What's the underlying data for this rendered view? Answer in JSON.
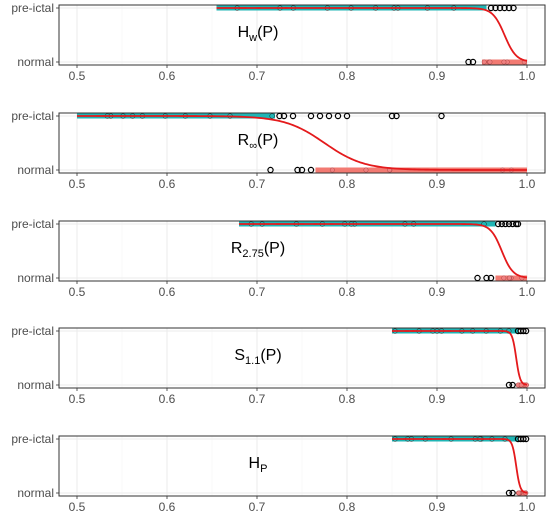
{
  "chart_data": [
    {
      "type": "scatter",
      "title_main": "H",
      "title_sub": "w",
      "title_suffix": "(P)",
      "xlim": [
        0.48,
        1.02
      ],
      "xticks": [
        "0.5",
        "0.6",
        "0.7",
        "0.8",
        "0.9",
        "1.0"
      ],
      "ycategories": [
        "normal",
        "pre-ictal"
      ],
      "preictal_range": [
        0.655,
        0.955
      ],
      "normal_range": [
        0.95,
        1.0
      ],
      "preictal_outliers": [
        0.96,
        0.965,
        0.97,
        0.975,
        0.98,
        0.985
      ],
      "normal_outliers": [
        0.935,
        0.94
      ],
      "curve_mid": 0.975,
      "curve_scale": 0.0065
    },
    {
      "type": "scatter",
      "title_main": "R",
      "title_sub": "∞",
      "title_suffix": "(P)",
      "xlim": [
        0.48,
        1.02
      ],
      "xticks": [
        "0.5",
        "0.6",
        "0.7",
        "0.8",
        "0.9",
        "1.0"
      ],
      "ycategories": [
        "normal",
        "pre-ictal"
      ],
      "preictal_range": [
        0.5,
        0.72
      ],
      "normal_range": [
        0.765,
        1.0
      ],
      "preictal_outliers": [
        0.725,
        0.73,
        0.74,
        0.76,
        0.77,
        0.78,
        0.79,
        0.8,
        0.85,
        0.855,
        0.905
      ],
      "normal_outliers": [
        0.715,
        0.745,
        0.75,
        0.76
      ],
      "curve_mid": 0.775,
      "curve_scale": 0.022
    },
    {
      "type": "scatter",
      "title_main": "R",
      "title_sub": "2.75",
      "title_suffix": "(P)",
      "xlim": [
        0.48,
        1.02
      ],
      "xticks": [
        "0.5",
        "0.6",
        "0.7",
        "0.8",
        "0.9",
        "1.0"
      ],
      "ycategories": [
        "normal",
        "pre-ictal"
      ],
      "preictal_range": [
        0.68,
        0.965
      ],
      "normal_range": [
        0.965,
        1.0
      ],
      "preictal_outliers": [
        0.968,
        0.972,
        0.976,
        0.98,
        0.984,
        0.988,
        0.99
      ],
      "normal_outliers": [
        0.945,
        0.955,
        0.96
      ],
      "curve_mid": 0.972,
      "curve_scale": 0.0062
    },
    {
      "type": "scatter",
      "title_main": "S",
      "title_sub": "1.1",
      "title_suffix": "(P)",
      "xlim": [
        0.48,
        1.02
      ],
      "xticks": [
        "0.5",
        "0.6",
        "0.7",
        "0.8",
        "0.9",
        "1.0"
      ],
      "ycategories": [
        "normal",
        "pre-ictal"
      ],
      "preictal_range": [
        0.85,
        0.99
      ],
      "normal_range": [
        0.99,
        1.0
      ],
      "preictal_outliers": [
        0.99,
        0.993,
        0.996,
        0.999
      ],
      "normal_outliers": [
        0.98,
        0.984
      ],
      "curve_mid": 0.988,
      "curve_scale": 0.0022
    },
    {
      "type": "scatter",
      "title_main": "H",
      "title_sub": "P",
      "title_suffix": "",
      "xlim": [
        0.48,
        1.02
      ],
      "xticks": [
        "0.5",
        "0.6",
        "0.7",
        "0.8",
        "0.9",
        "1.0"
      ],
      "ycategories": [
        "normal",
        "pre-ictal"
      ],
      "preictal_range": [
        0.85,
        0.99
      ],
      "normal_range": [
        0.99,
        1.0
      ],
      "preictal_outliers": [
        0.99,
        0.993,
        0.996,
        0.999
      ],
      "normal_outliers": [
        0.98,
        0.984
      ],
      "curve_mid": 0.988,
      "curve_scale": 0.0022
    }
  ],
  "colors": {
    "preictal": "#1fb5b5",
    "normal": "#f27a72",
    "curve": "#e41a1c"
  }
}
